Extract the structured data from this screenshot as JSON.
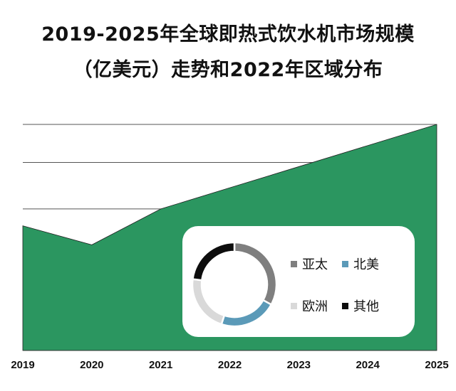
{
  "title_lines": [
    "2019-2025年全球即热式饮水机市场规模",
    "（亿美元）走势和2022年区域分布"
  ],
  "chart_data": [
    {
      "type": "area",
      "categories": [
        "2019",
        "2020",
        "2021",
        "2022",
        "2023",
        "2024",
        "2025"
      ],
      "values": [
        59,
        50,
        67,
        77,
        87,
        97,
        107
      ],
      "ylim": [
        0,
        107
      ],
      "gridlines": [
        67,
        89,
        107
      ],
      "grid": true,
      "y_tick_labels": false,
      "series_color": "#2b9660"
    },
    {
      "type": "pie",
      "style": "donut",
      "legend_position": "right",
      "labels": [
        "亚太",
        "北美",
        "欧洲",
        "其他"
      ],
      "values": [
        33,
        22,
        22,
        23
      ],
      "colors": [
        "#7f7f7f",
        "#5b9ab8",
        "#d9d9d9",
        "#0d0d0d"
      ]
    }
  ]
}
